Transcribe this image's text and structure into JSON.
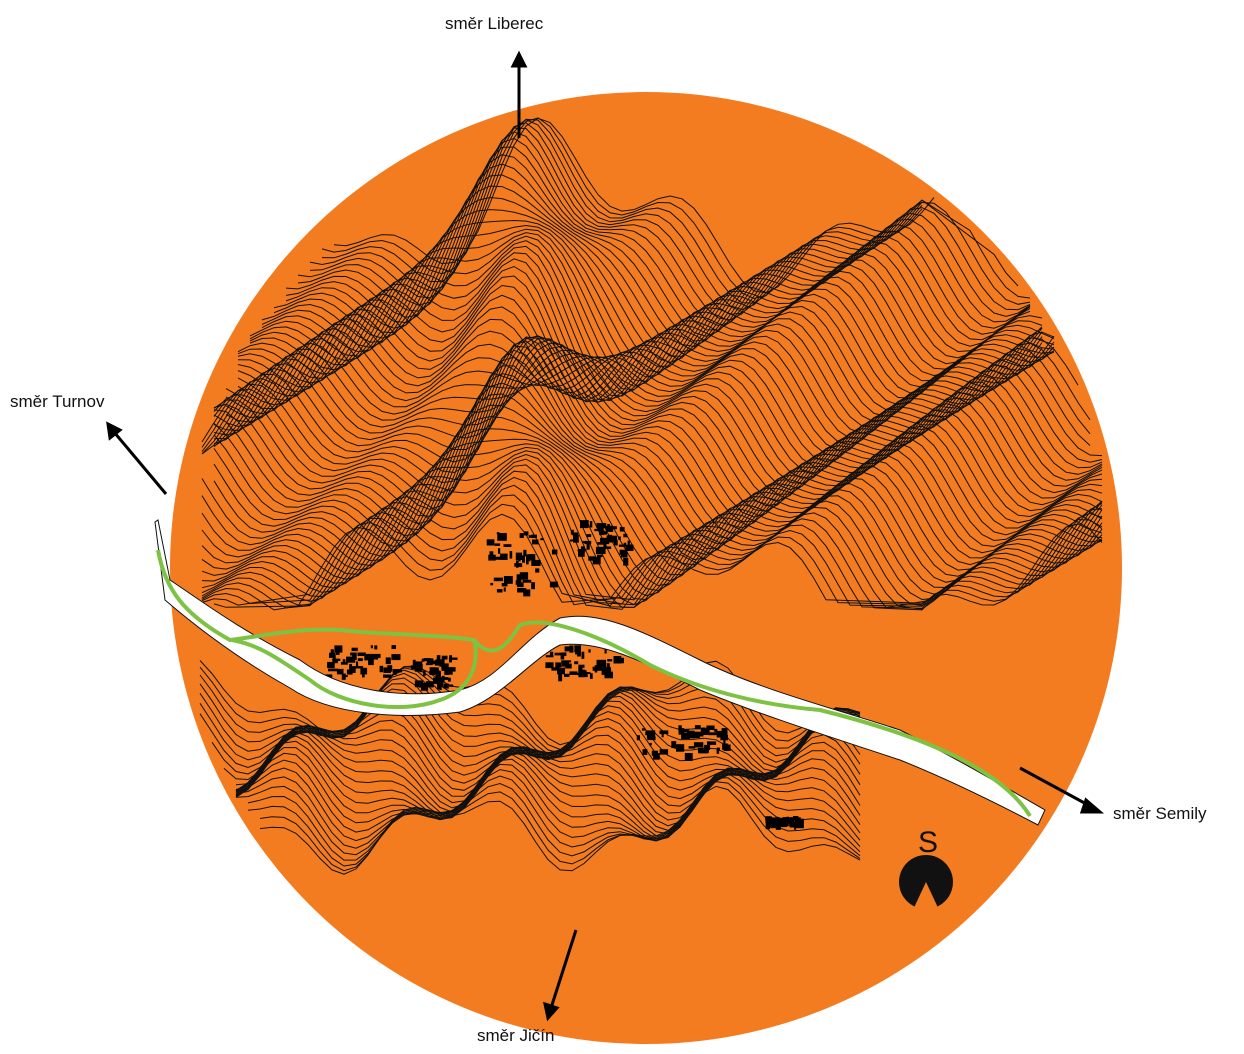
{
  "map": {
    "background_color": "#f47c20",
    "river_color": "#ffffff",
    "path_color": "#7dc242",
    "contour_color": "#111111",
    "buildings_color": "#000000"
  },
  "directions": {
    "liberec": "směr Liberec",
    "turnov": "směr Turnov",
    "semily": "směr Semily",
    "jicin": "směr Jičín"
  },
  "north_arrow": {
    "letter": "S",
    "icon": "north-arrow-icon"
  }
}
